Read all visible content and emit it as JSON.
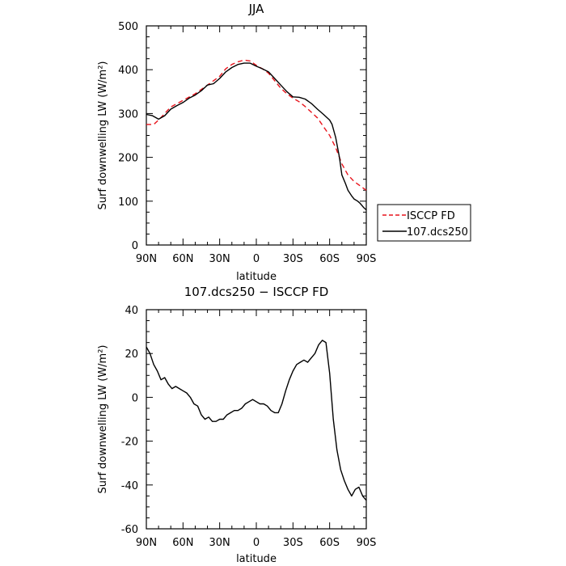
{
  "chart_data": [
    {
      "type": "line",
      "title": "JJA",
      "xlabel": "latitude",
      "ylabel": "Surf downwelling LW (W/m²)",
      "xlim": [
        -90,
        90
      ],
      "ylim": [
        0,
        500
      ],
      "x_ticks": [
        {
          "value": -90,
          "label": "90N"
        },
        {
          "value": -60,
          "label": "60N"
        },
        {
          "value": -30,
          "label": "30N"
        },
        {
          "value": 0,
          "label": "0"
        },
        {
          "value": 30,
          "label": "30S"
        },
        {
          "value": 60,
          "label": "60S"
        },
        {
          "value": 90,
          "label": "90S"
        }
      ],
      "y_ticks": [
        0,
        100,
        200,
        300,
        400,
        500
      ],
      "legend_position": "outside right",
      "series": [
        {
          "name": "ISCCP FD",
          "color": "#e8141c",
          "style": "dashed",
          "x": [
            -90,
            -84,
            -80,
            -75,
            -70,
            -60,
            -50,
            -40,
            -35,
            -30,
            -25,
            -20,
            -15,
            -10,
            -5,
            0,
            5,
            10,
            15,
            20,
            25,
            30,
            35,
            40,
            45,
            50,
            55,
            60,
            65,
            70,
            75,
            80,
            85,
            90
          ],
          "y": [
            275,
            275,
            285,
            300,
            315,
            330,
            345,
            365,
            375,
            385,
            402,
            412,
            418,
            422,
            420,
            410,
            402,
            392,
            375,
            358,
            345,
            335,
            327,
            316,
            303,
            290,
            270,
            250,
            222,
            185,
            160,
            145,
            135,
            125
          ]
        },
        {
          "name": "107.dcs250",
          "color": "#000000",
          "style": "solid",
          "x": [
            -90,
            -85,
            -80,
            -75,
            -70,
            -65,
            -60,
            -55,
            -50,
            -45,
            -40,
            -35,
            -30,
            -25,
            -20,
            -15,
            -10,
            -5,
            0,
            5,
            10,
            15,
            20,
            25,
            30,
            35,
            40,
            45,
            50,
            55,
            60,
            62,
            65,
            68,
            70,
            73,
            75,
            78,
            80,
            83,
            85,
            88,
            90
          ],
          "y": [
            298,
            295,
            287,
            295,
            310,
            318,
            325,
            335,
            342,
            352,
            365,
            368,
            380,
            395,
            405,
            412,
            415,
            415,
            408,
            402,
            395,
            380,
            365,
            350,
            338,
            337,
            333,
            323,
            310,
            298,
            285,
            275,
            245,
            200,
            160,
            140,
            125,
            112,
            105,
            100,
            95,
            85,
            80
          ]
        }
      ]
    },
    {
      "type": "line",
      "title": "107.dcs250 − ISCCP FD",
      "xlabel": "latitude",
      "ylabel": "Surf downwelling LW (W/m²)",
      "xlim": [
        -90,
        90
      ],
      "ylim": [
        -60,
        40
      ],
      "x_ticks": [
        {
          "value": -90,
          "label": "90N"
        },
        {
          "value": -60,
          "label": "60N"
        },
        {
          "value": -30,
          "label": "30N"
        },
        {
          "value": 0,
          "label": "0"
        },
        {
          "value": 30,
          "label": "30S"
        },
        {
          "value": 60,
          "label": "60S"
        },
        {
          "value": 90,
          "label": "90S"
        }
      ],
      "y_ticks": [
        -60,
        -40,
        -20,
        0,
        20,
        40
      ],
      "series": [
        {
          "name": "",
          "color": "#000000",
          "style": "solid",
          "x": [
            -90,
            -87,
            -84,
            -81,
            -78,
            -75,
            -72,
            -69,
            -66,
            -63,
            -60,
            -57,
            -54,
            -51,
            -48,
            -45,
            -42,
            -39,
            -36,
            -33,
            -30,
            -27,
            -24,
            -21,
            -18,
            -15,
            -12,
            -9,
            -6,
            -3,
            0,
            3,
            6,
            9,
            12,
            15,
            18,
            21,
            24,
            27,
            30,
            33,
            36,
            39,
            42,
            45,
            48,
            51,
            54,
            57,
            60,
            63,
            66,
            69,
            72,
            75,
            78,
            81,
            84,
            87,
            90
          ],
          "y": [
            23,
            20,
            15,
            12,
            8,
            9,
            6,
            4,
            5,
            4,
            3,
            2,
            0,
            -3,
            -4,
            -8,
            -10,
            -9,
            -11,
            -11,
            -10,
            -10,
            -8,
            -7,
            -6,
            -6,
            -5,
            -3,
            -2,
            -1,
            -2,
            -3,
            -3,
            -4,
            -6,
            -7,
            -7,
            -3,
            3,
            8,
            12,
            15,
            16,
            17,
            16,
            18,
            20,
            24,
            26,
            25,
            11,
            -10,
            -24,
            -33,
            -38,
            -42,
            -45,
            -42,
            -41,
            -45,
            -47
          ]
        }
      ]
    }
  ]
}
